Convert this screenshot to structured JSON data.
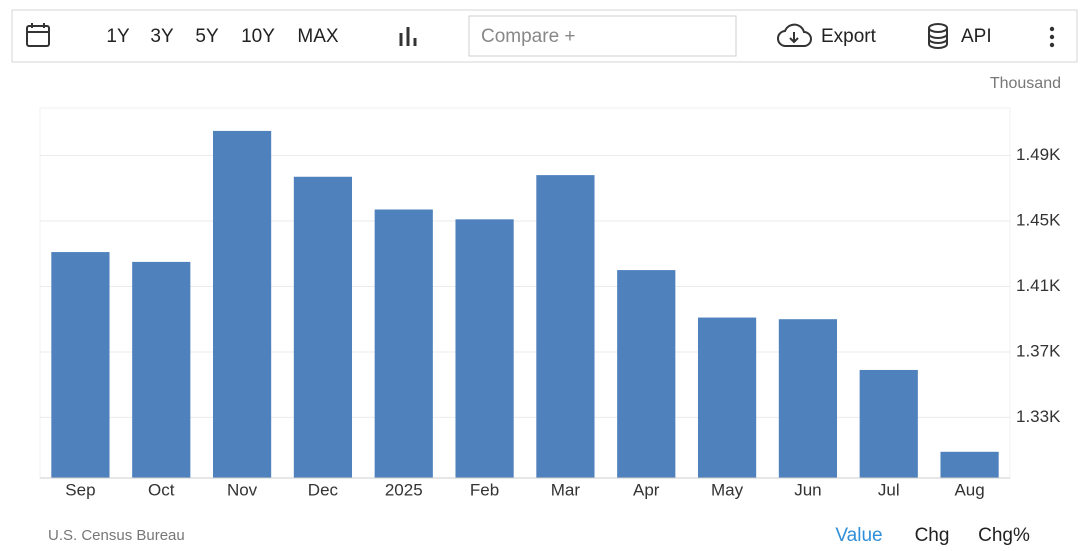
{
  "toolbar": {
    "ranges": [
      "1Y",
      "3Y",
      "5Y",
      "10Y",
      "MAX"
    ],
    "compare_placeholder": "Compare +",
    "export": "Export",
    "api": "API"
  },
  "chart_data": {
    "type": "bar",
    "unit": "Thousand",
    "source": "U.S. Census Bureau",
    "categories": [
      "Sep",
      "Oct",
      "Nov",
      "Dec",
      "2025",
      "Feb",
      "Mar",
      "Apr",
      "May",
      "Jun",
      "Jul",
      "Aug"
    ],
    "values": [
      1431,
      1425,
      1505,
      1477,
      1457,
      1451,
      1478,
      1420,
      1391,
      1390,
      1359,
      1309
    ],
    "color": "#4f81bd",
    "ylim": [
      1293,
      1519
    ],
    "yticks": [
      {
        "value": 1330,
        "label": "1.33K"
      },
      {
        "value": 1370,
        "label": "1.37K"
      },
      {
        "value": 1410,
        "label": "1.41K"
      },
      {
        "value": 1450,
        "label": "1.45K"
      },
      {
        "value": 1490,
        "label": "1.49K"
      }
    ],
    "grid": true
  },
  "view_tabs": [
    "Value",
    "Chg",
    "Chg%"
  ]
}
